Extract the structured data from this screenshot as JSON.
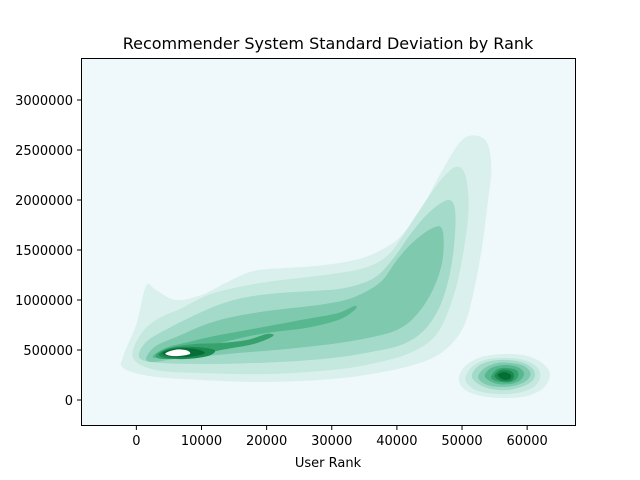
{
  "chart_data": {
    "type": "kde",
    "title": "Recommender System Standard Deviation by Rank",
    "xlabel": "User Rank",
    "ylabel": "",
    "xlim": [
      -8500,
      67500
    ],
    "ylim": [
      -260000,
      3420000
    ],
    "xticks": [
      0,
      10000,
      20000,
      30000,
      40000,
      50000,
      60000
    ],
    "yticks": [
      0,
      500000,
      1000000,
      1500000,
      2000000,
      2500000,
      3000000
    ],
    "grid": false,
    "colors": {
      "background": "#eff8fb",
      "levels": [
        "#d9f0ec",
        "#c4e8de",
        "#a3dac9",
        "#7fc9ae",
        "#57b78f",
        "#37a26e",
        "#1a8a4e",
        "#056d35",
        "#ffffff"
      ]
    },
    "density_peaks": [
      {
        "x": 6000,
        "y": 460000
      },
      {
        "x": 56500,
        "y": 200000
      }
    ],
    "contours": [
      {
        "level": 1,
        "regions": [
          [
            [
              -2000,
              440000
            ],
            [
              0,
              760000
            ],
            [
              1500,
              1140000
            ],
            [
              3000,
              1100000
            ],
            [
              6000,
              1000000
            ],
            [
              10000,
              1050000
            ],
            [
              14000,
              1180000
            ],
            [
              18000,
              1290000
            ],
            [
              23000,
              1320000
            ],
            [
              27500,
              1340000
            ],
            [
              32000,
              1380000
            ],
            [
              36000,
              1450000
            ],
            [
              40000,
              1600000
            ],
            [
              42500,
              1800000
            ],
            [
              44500,
              2000000
            ],
            [
              47000,
              2300000
            ],
            [
              50000,
              2600000
            ],
            [
              52500,
              2640000
            ],
            [
              54000,
              2550000
            ],
            [
              54500,
              2300000
            ],
            [
              54000,
              2000000
            ],
            [
              53000,
              1500000
            ],
            [
              51500,
              1000000
            ],
            [
              50000,
              700000
            ],
            [
              47000,
              480000
            ],
            [
              43000,
              360000
            ],
            [
              37000,
              270000
            ],
            [
              30000,
              210000
            ],
            [
              20000,
              180000
            ],
            [
              10000,
              200000
            ],
            [
              2000,
              240000
            ],
            [
              -2000,
              320000
            ]
          ],
          [
            [
              49500,
              210000
            ],
            [
              50500,
              340000
            ],
            [
              53000,
              430000
            ],
            [
              56500,
              460000
            ],
            [
              60000,
              440000
            ],
            [
              62500,
              360000
            ],
            [
              63500,
              250000
            ],
            [
              62500,
              120000
            ],
            [
              60000,
              40000
            ],
            [
              56500,
              20000
            ],
            [
              53000,
              40000
            ],
            [
              50500,
              100000
            ]
          ]
        ]
      },
      {
        "level": 2,
        "regions": [
          [
            [
              -500,
              420000
            ],
            [
              500,
              640000
            ],
            [
              3000,
              800000
            ],
            [
              7000,
              920000
            ],
            [
              11000,
              1050000
            ],
            [
              15000,
              1120000
            ],
            [
              20000,
              1180000
            ],
            [
              25000,
              1220000
            ],
            [
              30000,
              1260000
            ],
            [
              35000,
              1320000
            ],
            [
              38500,
              1440000
            ],
            [
              41000,
              1650000
            ],
            [
              43500,
              1900000
            ],
            [
              46500,
              2180000
            ],
            [
              49000,
              2330000
            ],
            [
              50500,
              2250000
            ],
            [
              51000,
              1900000
            ],
            [
              50000,
              1400000
            ],
            [
              48500,
              1000000
            ],
            [
              46000,
              650000
            ],
            [
              42000,
              470000
            ],
            [
              36000,
              360000
            ],
            [
              30000,
              300000
            ],
            [
              20000,
              260000
            ],
            [
              10000,
              270000
            ],
            [
              3000,
              300000
            ]
          ],
          [
            [
              50500,
              220000
            ],
            [
              51500,
              330000
            ],
            [
              53500,
              400000
            ],
            [
              56500,
              420000
            ],
            [
              59500,
              400000
            ],
            [
              61500,
              330000
            ],
            [
              62000,
              230000
            ],
            [
              61000,
              130000
            ],
            [
              58500,
              70000
            ],
            [
              55500,
              60000
            ],
            [
              52500,
              90000
            ],
            [
              51000,
              150000
            ]
          ]
        ]
      },
      {
        "level": 3,
        "regions": [
          [
            [
              500,
              420000
            ],
            [
              1500,
              580000
            ],
            [
              5000,
              720000
            ],
            [
              9000,
              850000
            ],
            [
              13000,
              960000
            ],
            [
              17000,
              1030000
            ],
            [
              22000,
              1070000
            ],
            [
              27000,
              1090000
            ],
            [
              32000,
              1120000
            ],
            [
              36500,
              1220000
            ],
            [
              39500,
              1420000
            ],
            [
              42000,
              1650000
            ],
            [
              45000,
              1880000
            ],
            [
              48000,
              2000000
            ],
            [
              49000,
              1850000
            ],
            [
              48500,
              1400000
            ],
            [
              47000,
              1000000
            ],
            [
              44500,
              720000
            ],
            [
              41000,
              560000
            ],
            [
              36000,
              480000
            ],
            [
              30000,
              420000
            ],
            [
              22000,
              380000
            ],
            [
              12000,
              360000
            ],
            [
              4000,
              370000
            ]
          ],
          [
            [
              51500,
              240000
            ],
            [
              52500,
              340000
            ],
            [
              54500,
              390000
            ],
            [
              57000,
              400000
            ],
            [
              59500,
              370000
            ],
            [
              61000,
              300000
            ],
            [
              61000,
              210000
            ],
            [
              59500,
              140000
            ],
            [
              57000,
              100000
            ],
            [
              54500,
              110000
            ],
            [
              52500,
              160000
            ]
          ]
        ]
      },
      {
        "level": 4,
        "regions": [
          [
            [
              1500,
              420000
            ],
            [
              3000,
              540000
            ],
            [
              6500,
              640000
            ],
            [
              10000,
              740000
            ],
            [
              14000,
              820000
            ],
            [
              19000,
              880000
            ],
            [
              24000,
              920000
            ],
            [
              29000,
              960000
            ],
            [
              33500,
              1030000
            ],
            [
              37500,
              1180000
            ],
            [
              40000,
              1400000
            ],
            [
              42500,
              1580000
            ],
            [
              45500,
              1720000
            ],
            [
              47000,
              1700000
            ],
            [
              47000,
              1400000
            ],
            [
              45500,
              1100000
            ],
            [
              43000,
              850000
            ],
            [
              40000,
              700000
            ],
            [
              35500,
              620000
            ],
            [
              30000,
              560000
            ],
            [
              23000,
              510000
            ],
            [
              14000,
              460000
            ],
            [
              6000,
              410000
            ],
            [
              2500,
              380000
            ]
          ],
          [
            [
              52500,
              240000
            ],
            [
              53500,
              320000
            ],
            [
              55500,
              370000
            ],
            [
              57500,
              370000
            ],
            [
              59500,
              340000
            ],
            [
              60500,
              270000
            ],
            [
              60000,
              200000
            ],
            [
              58500,
              150000
            ],
            [
              56500,
              130000
            ],
            [
              54500,
              140000
            ],
            [
              53000,
              180000
            ]
          ]
        ]
      },
      {
        "level": 5,
        "regions": [
          [
            [
              2500,
              430000
            ],
            [
              4500,
              520000
            ],
            [
              8000,
              580000
            ],
            [
              12000,
              640000
            ],
            [
              17000,
              700000
            ],
            [
              22000,
              760000
            ],
            [
              27000,
              820000
            ],
            [
              31000,
              870000
            ],
            [
              33500,
              940000
            ],
            [
              33500,
              900000
            ],
            [
              31000,
              800000
            ],
            [
              26000,
              720000
            ],
            [
              21000,
              680000
            ],
            [
              16000,
              620000
            ],
            [
              10000,
              520000
            ],
            [
              5000,
              430000
            ]
          ],
          [
            [
              53500,
              250000
            ],
            [
              54500,
              320000
            ],
            [
              56500,
              350000
            ],
            [
              58500,
              330000
            ],
            [
              59500,
              270000
            ],
            [
              59000,
              200000
            ],
            [
              57500,
              160000
            ],
            [
              55500,
              160000
            ],
            [
              54000,
              200000
            ]
          ]
        ]
      },
      {
        "level": 6,
        "regions": [
          [
            [
              3000,
              450000
            ],
            [
              5000,
              520000
            ],
            [
              9000,
              560000
            ],
            [
              13000,
              570000
            ],
            [
              17000,
              600000
            ],
            [
              20000,
              660000
            ],
            [
              21000,
              640000
            ],
            [
              18000,
              560000
            ],
            [
              13000,
              500000
            ],
            [
              8000,
              430000
            ],
            [
              4000,
              410000
            ]
          ],
          [
            [
              54500,
              240000
            ],
            [
              55500,
              310000
            ],
            [
              57000,
              320000
            ],
            [
              58500,
              290000
            ],
            [
              58500,
              220000
            ],
            [
              57500,
              180000
            ],
            [
              56000,
              180000
            ],
            [
              54800,
              200000
            ]
          ]
        ]
      },
      {
        "level": 7,
        "regions": [
          [
            [
              3500,
              460000
            ],
            [
              5500,
              520000
            ],
            [
              9000,
              530000
            ],
            [
              12000,
              500000
            ],
            [
              11000,
              440000
            ],
            [
              7500,
              410000
            ],
            [
              4500,
              420000
            ]
          ],
          [
            [
              55000,
              240000
            ],
            [
              56000,
              300000
            ],
            [
              57500,
              290000
            ],
            [
              58000,
              240000
            ],
            [
              57500,
              190000
            ],
            [
              56000,
              190000
            ]
          ]
        ]
      },
      {
        "level": 8,
        "regions": [
          [
            [
              4000,
              470000
            ],
            [
              6000,
              515000
            ],
            [
              9000,
              510000
            ],
            [
              10500,
              470000
            ],
            [
              8500,
              435000
            ],
            [
              5500,
              430000
            ]
          ],
          [
            [
              55500,
              250000
            ],
            [
              56500,
              280000
            ],
            [
              57500,
              250000
            ],
            [
              57300,
              210000
            ],
            [
              56300,
              205000
            ]
          ]
        ]
      },
      {
        "level": 9,
        "regions": [
          [
            [
              4500,
              470000
            ],
            [
              6200,
              505000
            ],
            [
              7800,
              495000
            ],
            [
              8200,
              460000
            ],
            [
              6500,
              440000
            ],
            [
              5000,
              445000
            ]
          ]
        ]
      }
    ]
  }
}
